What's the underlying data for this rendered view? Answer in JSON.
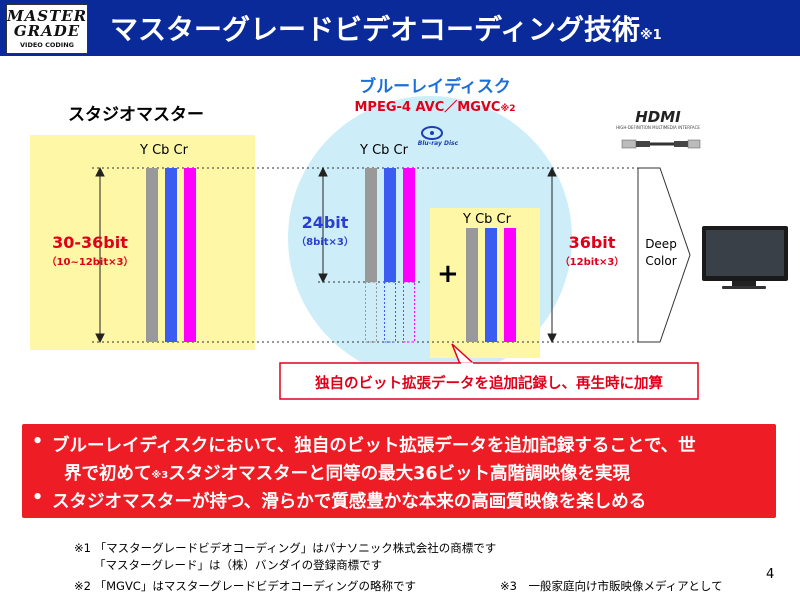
{
  "header": {
    "logo": {
      "line1": "MASTER",
      "line2": "GRADE",
      "line3": "VIDEO CODING"
    },
    "title": "マスターグレードビデオコーディング技術",
    "title_note": "※1"
  },
  "diagram": {
    "studio_master": {
      "label": "スタジオマスター",
      "channels": "Y Cb Cr",
      "bit_main": "30-36bit",
      "bit_sub": "（10~12bit×3）"
    },
    "bluray": {
      "title": "ブルーレイディスク",
      "codec": "MPEG-4 AVC／MGVC",
      "codec_note": "※2",
      "logo_text": "Blu-ray Disc",
      "channels": "Y Cb Cr",
      "bit_main": "24bit",
      "bit_sub": "（8bit×3）"
    },
    "extension": {
      "channels": "Y Cb Cr",
      "plus": "+"
    },
    "result": {
      "bit_main": "36bit",
      "bit_sub": "（12bit×3）"
    },
    "hdmi": {
      "logo_text": "HDMI",
      "tagline": "HIGH-DEFINITION MULTIMEDIA INTERFACE"
    },
    "deep_color": {
      "line1": "Deep",
      "line2": "Color"
    },
    "callout": "独自のビット拡張データを追加記録し、再生時に加算",
    "colors": {
      "luma": "#999999",
      "cb": "#3a5cf0",
      "cr": "#ff00ff",
      "studio_bg": "#fdf7a6",
      "disc_bg": "#cdeef8",
      "accent_red": "#ee1c25",
      "header_blue": "#0a2a9a"
    }
  },
  "bullets": {
    "mark": "•",
    "b1_line1": "ブルーレイディスクにおいて、独自のビット拡張データを追加記録することで、世",
    "b1_line2_a": "界で初めて",
    "b1_line2_note": "※3",
    "b1_line2_b": "スタジオマスターと同等の最大36ビット高階調映像を実現",
    "b2": "スタジオマスターが持つ、滑らかで質感豊かな本来の高画質映像を楽しめる"
  },
  "notes": {
    "n1_line1": "※1 「マスターグレードビデオコーディング」はパナソニック株式会社の商標です",
    "n1_line2": "「マスターグレード」は（株）バンダイの登録商標です",
    "n2": "※2 「MGVC」はマスターグレードビデオコーディングの略称です",
    "n3": "※3　一般家庭向け市販映像メディアとして",
    "page": "4"
  }
}
